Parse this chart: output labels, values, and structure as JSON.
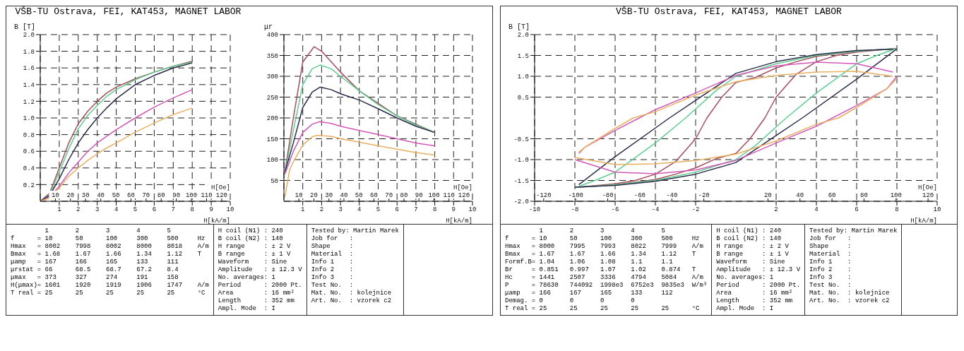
{
  "chart_data": [
    {
      "type": "line",
      "title": "VŠB-TU Ostrava, FEI, KAT453, MAGNET LABOR",
      "xlabel": "H[kA/m]",
      "x2label": "H[Oe]",
      "ylabel": "B [T]",
      "xlim": [
        0,
        10
      ],
      "xticks": [
        1,
        2,
        3,
        4,
        5,
        6,
        7,
        8,
        9,
        10
      ],
      "x2lim": [
        0,
        125.66
      ],
      "x2ticks": [
        10,
        20,
        30,
        40,
        50,
        60,
        70,
        80,
        90,
        100,
        110,
        120
      ],
      "ylim": [
        0,
        2
      ],
      "yticks": [
        {
          "value": 0.2,
          "label": "0.2"
        },
        {
          "value": 0.4,
          "label": "0.4"
        },
        {
          "value": 0.6,
          "label": "0.6"
        },
        {
          "value": 0.8,
          "label": "0.8"
        },
        {
          "value": 1,
          "label": "1.0"
        },
        1.2,
        1.4,
        1.6,
        1.8,
        {
          "value": 2,
          "label": "2.0"
        }
      ],
      "grid": true,
      "x": [
        0,
        0.5,
        1,
        1.5,
        2,
        2.5,
        3,
        3.5,
        4,
        5,
        6,
        7,
        8
      ],
      "series": [
        {
          "color": "#a84a5a",
          "values": [
            0,
            0.1,
            0.4,
            0.7,
            0.93,
            1.08,
            1.2,
            1.3,
            1.37,
            1.47,
            1.55,
            1.62,
            1.68
          ]
        },
        {
          "color": "#5ccf90",
          "values": [
            0,
            0.08,
            0.35,
            0.63,
            0.87,
            1.03,
            1.15,
            1.26,
            1.34,
            1.46,
            1.55,
            1.62,
            1.67
          ]
        },
        {
          "color": "#2a2a4a",
          "values": [
            0,
            0.07,
            0.27,
            0.5,
            0.7,
            0.86,
            1.0,
            1.12,
            1.23,
            1.4,
            1.51,
            1.6,
            1.66
          ]
        },
        {
          "color": "#d458b8",
          "values": [
            0,
            0.05,
            0.18,
            0.34,
            0.47,
            0.6,
            0.7,
            0.78,
            0.86,
            1.0,
            1.13,
            1.24,
            1.34
          ]
        },
        {
          "color": "#e8b060",
          "values": [
            0,
            0.04,
            0.16,
            0.3,
            0.4,
            0.49,
            0.57,
            0.64,
            0.7,
            0.83,
            0.94,
            1.04,
            1.12
          ]
        }
      ]
    },
    {
      "type": "line",
      "xlabel": "H[kA/m]",
      "x2label": "H[Oe]",
      "ylabel": "μr",
      "xlim": [
        0,
        10
      ],
      "xticks": [
        1,
        2,
        3,
        4,
        5,
        6,
        7,
        8,
        9,
        10
      ],
      "x2lim": [
        0,
        125.66
      ],
      "x2ticks": [
        10,
        20,
        30,
        40,
        50,
        60,
        70,
        80,
        90,
        100,
        110,
        120
      ],
      "ylim": [
        0,
        400
      ],
      "yticks": [
        50,
        100,
        150,
        200,
        250,
        300,
        350,
        400
      ],
      "grid": true,
      "series": [
        {
          "color": "#a84a5a",
          "x": [
            0.05,
            0.5,
            1,
            1.6,
            2,
            3,
            4,
            5,
            6,
            7,
            8
          ],
          "values": [
            70,
            200,
            334,
            371,
            360,
            310,
            265,
            235,
            205,
            185,
            165
          ]
        },
        {
          "color": "#5ccf90",
          "x": [
            0.05,
            0.5,
            1,
            1.5,
            1.92,
            2.5,
            3,
            4,
            5,
            6,
            7,
            8
          ],
          "values": [
            70,
            170,
            280,
            318,
            327,
            318,
            300,
            265,
            232,
            205,
            183,
            165
          ]
        },
        {
          "color": "#2a2a4a",
          "x": [
            0.05,
            0.5,
            1,
            1.5,
            1.92,
            2.5,
            3,
            4,
            5,
            6,
            7,
            8
          ],
          "values": [
            70,
            140,
            225,
            262,
            274,
            268,
            258,
            243,
            222,
            200,
            180,
            165
          ]
        },
        {
          "color": "#d458b8",
          "x": [
            0.05,
            0.5,
            1,
            1.5,
            1.9,
            2.5,
            3,
            4,
            5,
            6,
            7,
            8
          ],
          "values": [
            65,
            120,
            165,
            185,
            191,
            187,
            180,
            170,
            160,
            150,
            140,
            133
          ]
        },
        {
          "color": "#e8b060",
          "x": [
            0.05,
            0.3,
            0.5,
            1,
            1.5,
            1.75,
            2.5,
            3,
            4,
            5,
            6,
            7,
            8
          ],
          "values": [
            10,
            75,
            95,
            135,
            155,
            158,
            156,
            150,
            142,
            133,
            125,
            117,
            111
          ]
        }
      ]
    },
    {
      "type": "other",
      "annotations": [
        "         1       2       3       4       5",
        "f      = 10      50      100     300     500     Hz",
        "Hmax   = 8002    7998    8002    8000    8018    A/m",
        "Bmax   = 1.68    1.67    1.66    1.34    1.12    T",
        "μamp   = 167     166     165     133     111",
        "μrstat = 66      68.5    68.7    67.2    8.4",
        "μmax   = 373     327     274     191     158",
        "H(μmax)= 1601    1920    1919    1906    1747    A/m",
        "T real = 25      25      25      25      25      °C"
      ]
    },
    {
      "type": "other",
      "annotations": [
        "H coil (N1) : 240",
        "B coil (N2) : 140",
        "H range     : ± 2 V",
        "B range     : ± 1 V",
        "Waveform    : Sine",
        "Amplitude   : ± 12.3 V",
        "No. averages: 1",
        "Period      : 2000 Pt.",
        "Area        : 16 mm²",
        "Length      : 352 mm",
        "Ampl. Mode  : I"
      ]
    },
    {
      "type": "other",
      "annotations": [
        "Tested by: Martin Marek",
        "Job for   :",
        "Shape     :",
        "Material  :",
        "Info 1    :",
        "Info 2    :",
        "Info 3    :",
        "Test No.  :",
        "Mat. No.  : kolejnice",
        "Art. No.  : vzorek c2"
      ]
    },
    {
      "type": "line",
      "title": "VŠB-TU Ostrava, FEI, KAT453, MAGNET LABOR",
      "xlabel": "H[kA/m]",
      "x2label": "H[Oe]",
      "ylabel": "B [T]",
      "xlim": [
        -10,
        10
      ],
      "xticks": [
        -10,
        -8,
        -6,
        -4,
        -2,
        2,
        4,
        6,
        8,
        10
      ],
      "x2lim": [
        -125.66,
        125.66
      ],
      "x2ticks": [
        -120,
        -100,
        -80,
        -60,
        -40,
        -20,
        20,
        40,
        60,
        80,
        100,
        120
      ],
      "ylim": [
        -2,
        2
      ],
      "yticks": [
        {
          "value": -2,
          "label": "-2.0"
        },
        -1.5,
        {
          "value": -1,
          "label": "-1.0"
        },
        -0.5,
        0.5,
        {
          "value": 1,
          "label": "1.0"
        },
        1.5,
        {
          "value": 2,
          "label": "2.0"
        }
      ],
      "grid": true,
      "series": [
        {
          "color": "#a84a5a",
          "x": [
            -8,
            -6,
            -4,
            -3,
            -2,
            -1,
            0,
            0.7,
            1.44,
            2,
            3,
            4,
            5,
            6,
            8
          ],
          "values": [
            -1.67,
            -1.6,
            -1.48,
            -1.35,
            -1.2,
            -0.98,
            -0.85,
            -0.5,
            0,
            0.5,
            1.05,
            1.35,
            1.5,
            1.58,
            1.67
          ]
        },
        {
          "color": "#a84a5a",
          "x": [
            7.8,
            6,
            4,
            3,
            2,
            1,
            0,
            -0.7,
            -1.44,
            -2,
            -3,
            -4,
            -5,
            -6,
            -7.8
          ],
          "values": [
            1.66,
            1.6,
            1.48,
            1.35,
            1.2,
            0.98,
            0.85,
            0.5,
            0,
            -0.5,
            -1.05,
            -1.35,
            -1.5,
            -1.58,
            -1.66
          ]
        },
        {
          "color": "#5ccf90",
          "x": [
            -8,
            -6,
            -4,
            -2,
            0,
            1,
            2.5,
            4,
            5,
            6,
            7,
            8
          ],
          "values": [
            -1.67,
            -1.6,
            -1.5,
            -1.3,
            -1.0,
            -0.65,
            0,
            0.6,
            0.95,
            1.3,
            1.5,
            1.67
          ]
        },
        {
          "color": "#5ccf90",
          "x": [
            7.8,
            6,
            4,
            2,
            0,
            -1,
            -2.5,
            -4,
            -5,
            -6,
            -7,
            -7.8
          ],
          "values": [
            1.66,
            1.6,
            1.5,
            1.3,
            1.0,
            0.65,
            0,
            -0.6,
            -0.95,
            -1.3,
            -1.5,
            -1.64
          ]
        },
        {
          "color": "#2a2a4a",
          "x": [
            -8,
            -6,
            -4,
            -2,
            0,
            2,
            3.3,
            6,
            8
          ],
          "values": [
            -1.66,
            -1.62,
            -1.52,
            -1.35,
            -1.07,
            -0.42,
            0,
            0.93,
            1.66
          ]
        },
        {
          "color": "#2a2a4a",
          "x": [
            7.8,
            6,
            4,
            2,
            0,
            -2,
            -3.3,
            -6,
            -7.8
          ],
          "values": [
            1.65,
            1.62,
            1.52,
            1.35,
            1.07,
            0.42,
            0,
            -0.93,
            -1.6
          ]
        },
        {
          "color": "#d458b8",
          "x": [
            -8,
            -6,
            -4,
            -2,
            0,
            2,
            4,
            4.8,
            6,
            7.5,
            8
          ],
          "values": [
            -1.0,
            -1.3,
            -1.34,
            -1.25,
            -1.02,
            -0.6,
            -0.2,
            0,
            0.3,
            0.7,
            1.0
          ]
        },
        {
          "color": "#d458b8",
          "x": [
            7.8,
            6,
            4,
            2,
            0,
            -2,
            -4,
            -4.8,
            -6,
            -7.5,
            -7.8
          ],
          "values": [
            1.1,
            1.3,
            1.34,
            1.25,
            1.02,
            0.6,
            0.2,
            0,
            -0.3,
            -0.7,
            -0.85
          ]
        },
        {
          "color": "#e8b060",
          "x": [
            -8,
            -6,
            -4,
            -2,
            0,
            2,
            4,
            5.1,
            6,
            7.5,
            8
          ],
          "values": [
            -0.95,
            -1.12,
            -1.1,
            -1.02,
            -0.87,
            -0.55,
            -0.15,
            0,
            0.25,
            0.7,
            0.95
          ]
        },
        {
          "color": "#e8b060",
          "x": [
            7.8,
            6,
            4,
            2,
            0,
            -2,
            -4,
            -5.1,
            -6,
            -7.5,
            -7.8
          ],
          "values": [
            1.0,
            1.12,
            1.1,
            1.02,
            0.87,
            0.55,
            0.15,
            0,
            -0.25,
            -0.7,
            -0.82
          ]
        }
      ]
    },
    {
      "type": "other",
      "annotations": [
        "         1       2       3       4       5",
        "f      = 10      50      100     300     500     Hz",
        "Hmax   = 8000    7995    7993    8022    7999    A/m",
        "Bmax   = 1.67    1.67    1.66    1.34    1.12    T",
        "Formf.B= 1.04    1.06    1.08    1.1     1.1",
        "Br     = 0.851   0.997   1.07    1.02    0.874   T",
        "Hc     = 1441    2507    3336    4794    5084    A/m",
        "P      = 78630   744092  1998e3  6752e3  9835e3  W/m³",
        "μamp   = 166     167     165     133     112",
        "Demag. = 0       0       0       0",
        "T real = 25      25      25      25      25      °C"
      ]
    },
    {
      "type": "other",
      "annotations": [
        "H coil (N1) : 240",
        "B coil (N2) : 140",
        "H range     : ± 2 V",
        "B range     : ± 1 V",
        "Waveform    : Sine",
        "Amplitude   : ± 12.3 V",
        "No. averages: 1",
        "Period      : 2000 Pt.",
        "Area        : 16 mm²",
        "Length      : 352 mm",
        "Ampl. Mode  : I"
      ]
    },
    {
      "type": "other",
      "annotations": [
        "Tested by: Martin Marek",
        "Job for   :",
        "Shape     :",
        "Material  :",
        "Info 1    :",
        "Info 2    :",
        "Info 3    :",
        "Test No.  :",
        "Mat. No.  : kolejnice",
        "Art. No.  : vzorek c2"
      ]
    }
  ]
}
